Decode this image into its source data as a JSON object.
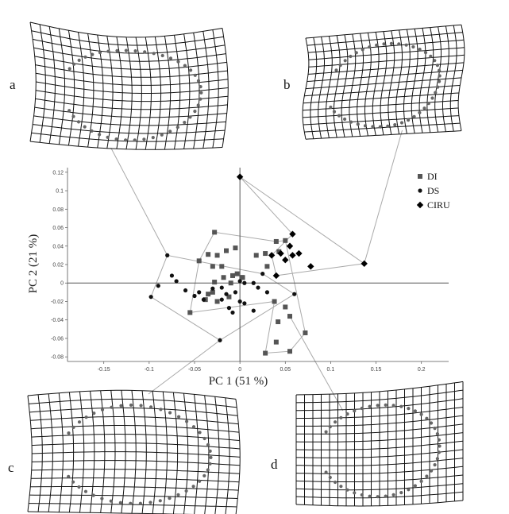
{
  "chart_data": {
    "type": "scatter",
    "xlabel": "PC 1 (51 %)",
    "ylabel": "PC 2 (21 %)",
    "xlim": [
      -0.19,
      0.23
    ],
    "ylim": [
      -0.085,
      0.125
    ],
    "x_ticks": [
      -0.15,
      -0.1,
      -0.05,
      0,
      0.05,
      0.1,
      0.15,
      0.2
    ],
    "x_tick_labels": [
      "-0.15",
      "-0.1",
      "-0.05",
      "0",
      "0.05",
      "0.1",
      "0.15",
      "0.2"
    ],
    "y_ticks": [
      -0.08,
      -0.06,
      -0.04,
      -0.02,
      0,
      0.02,
      0.04,
      0.06,
      0.08,
      0.1,
      0.12
    ],
    "y_tick_labels": [
      "-0.08",
      "-0.06",
      "-0.04",
      "-0.02",
      "0",
      "0.02",
      "0.04",
      "0.06",
      "0.08",
      "0.1",
      "0.12"
    ],
    "grid": false,
    "legend_position": "top-right",
    "series": [
      {
        "name": "DI",
        "marker": "square",
        "color": "#555555",
        "points": [
          [
            -0.035,
            0.031
          ],
          [
            -0.028,
            0.055
          ],
          [
            -0.045,
            0.024
          ],
          [
            -0.025,
            0.03
          ],
          [
            -0.015,
            0.035
          ],
          [
            -0.005,
            0.038
          ],
          [
            -0.03,
            0.018
          ],
          [
            -0.02,
            0.018
          ],
          [
            -0.018,
            0.006
          ],
          [
            -0.008,
            0.008
          ],
          [
            -0.003,
            0.01
          ],
          [
            0.002,
            0.006
          ],
          [
            0.003,
            0.006
          ],
          [
            -0.028,
            0.001
          ],
          [
            -0.01,
            0.0
          ],
          [
            -0.035,
            -0.012
          ],
          [
            -0.03,
            -0.01
          ],
          [
            -0.012,
            -0.015
          ],
          [
            -0.038,
            -0.018
          ],
          [
            -0.025,
            -0.02
          ],
          [
            -0.055,
            -0.032
          ],
          [
            0.018,
            0.03
          ],
          [
            0.028,
            0.032
          ],
          [
            0.04,
            0.045
          ],
          [
            0.043,
            0.034
          ],
          [
            0.05,
            0.046
          ],
          [
            0.038,
            -0.02
          ],
          [
            0.05,
            -0.026
          ],
          [
            0.055,
            -0.036
          ],
          [
            0.042,
            -0.042
          ],
          [
            0.072,
            -0.054
          ],
          [
            0.04,
            -0.064
          ],
          [
            0.055,
            -0.074
          ],
          [
            0.028,
            -0.076
          ],
          [
            0.03,
            0.018
          ]
        ]
      },
      {
        "name": "DS",
        "marker": "circle",
        "color": "#111111",
        "points": [
          [
            -0.08,
            0.03
          ],
          [
            -0.075,
            0.008
          ],
          [
            -0.09,
            -0.003
          ],
          [
            -0.098,
            -0.015
          ],
          [
            -0.07,
            0.002
          ],
          [
            -0.06,
            -0.008
          ],
          [
            -0.045,
            -0.01
          ],
          [
            -0.05,
            -0.014
          ],
          [
            -0.04,
            -0.018
          ],
          [
            -0.03,
            -0.006
          ],
          [
            -0.02,
            -0.005
          ],
          [
            -0.015,
            -0.012
          ],
          [
            -0.02,
            -0.018
          ],
          [
            0.0,
            0.002
          ],
          [
            0.005,
            0.0
          ],
          [
            -0.005,
            -0.01
          ],
          [
            0.0,
            -0.02
          ],
          [
            0.005,
            -0.022
          ],
          [
            -0.012,
            -0.027
          ],
          [
            -0.008,
            -0.032
          ],
          [
            0.015,
            0.0
          ],
          [
            0.02,
            -0.005
          ],
          [
            0.03,
            -0.01
          ],
          [
            0.015,
            -0.03
          ],
          [
            0.025,
            0.01
          ],
          [
            -0.022,
            -0.062
          ],
          [
            0.06,
            -0.012
          ]
        ]
      },
      {
        "name": "CIRU",
        "marker": "diamond",
        "color": "#000000",
        "points": [
          [
            0.0,
            0.115
          ],
          [
            0.058,
            0.053
          ],
          [
            0.055,
            0.04
          ],
          [
            0.035,
            0.03
          ],
          [
            0.045,
            0.032
          ],
          [
            0.058,
            0.03
          ],
          [
            0.05,
            0.025
          ],
          [
            0.065,
            0.032
          ],
          [
            0.078,
            0.018
          ],
          [
            0.04,
            0.008
          ],
          [
            0.137,
            0.021
          ]
        ]
      }
    ],
    "hulls": [
      {
        "series": "DI",
        "points": [
          [
            -0.055,
            -0.032
          ],
          [
            -0.045,
            0.024
          ],
          [
            -0.028,
            0.055
          ],
          [
            0.04,
            0.045
          ],
          [
            0.05,
            0.046
          ],
          [
            0.072,
            -0.054
          ],
          [
            0.055,
            -0.074
          ],
          [
            0.028,
            -0.076
          ],
          [
            0.038,
            -0.02
          ]
        ]
      },
      {
        "series": "DS",
        "points": [
          [
            -0.098,
            -0.015
          ],
          [
            -0.08,
            0.03
          ],
          [
            0.025,
            0.01
          ],
          [
            0.06,
            -0.012
          ],
          [
            -0.022,
            -0.062
          ]
        ]
      },
      {
        "series": "CIRU",
        "points": [
          [
            0.0,
            0.115
          ],
          [
            0.137,
            0.021
          ],
          [
            0.04,
            0.008
          ],
          [
            0.035,
            0.03
          ],
          [
            0.058,
            0.053
          ]
        ]
      }
    ],
    "panel_labels": [
      "a",
      "b",
      "c",
      "d"
    ],
    "annotations": [
      {
        "panel": "a",
        "series": "DS",
        "point": [
          -0.08,
          0.03
        ]
      },
      {
        "panel": "b",
        "series": "CIRU",
        "point": [
          0.137,
          0.021
        ]
      },
      {
        "panel": "c",
        "series": "DS",
        "point": [
          -0.022,
          -0.062
        ]
      },
      {
        "panel": "d",
        "series": "DI",
        "point": [
          0.055,
          -0.036
        ]
      }
    ],
    "legend": [
      {
        "label": "DI",
        "marker": "square"
      },
      {
        "label": "DS",
        "marker": "circle"
      },
      {
        "label": "CIRU",
        "marker": "diamond"
      }
    ],
    "colors": {
      "axis": "#555555",
      "hull": "#aaaaaa",
      "grid_lines": "#111111",
      "dots": "#666666"
    }
  }
}
